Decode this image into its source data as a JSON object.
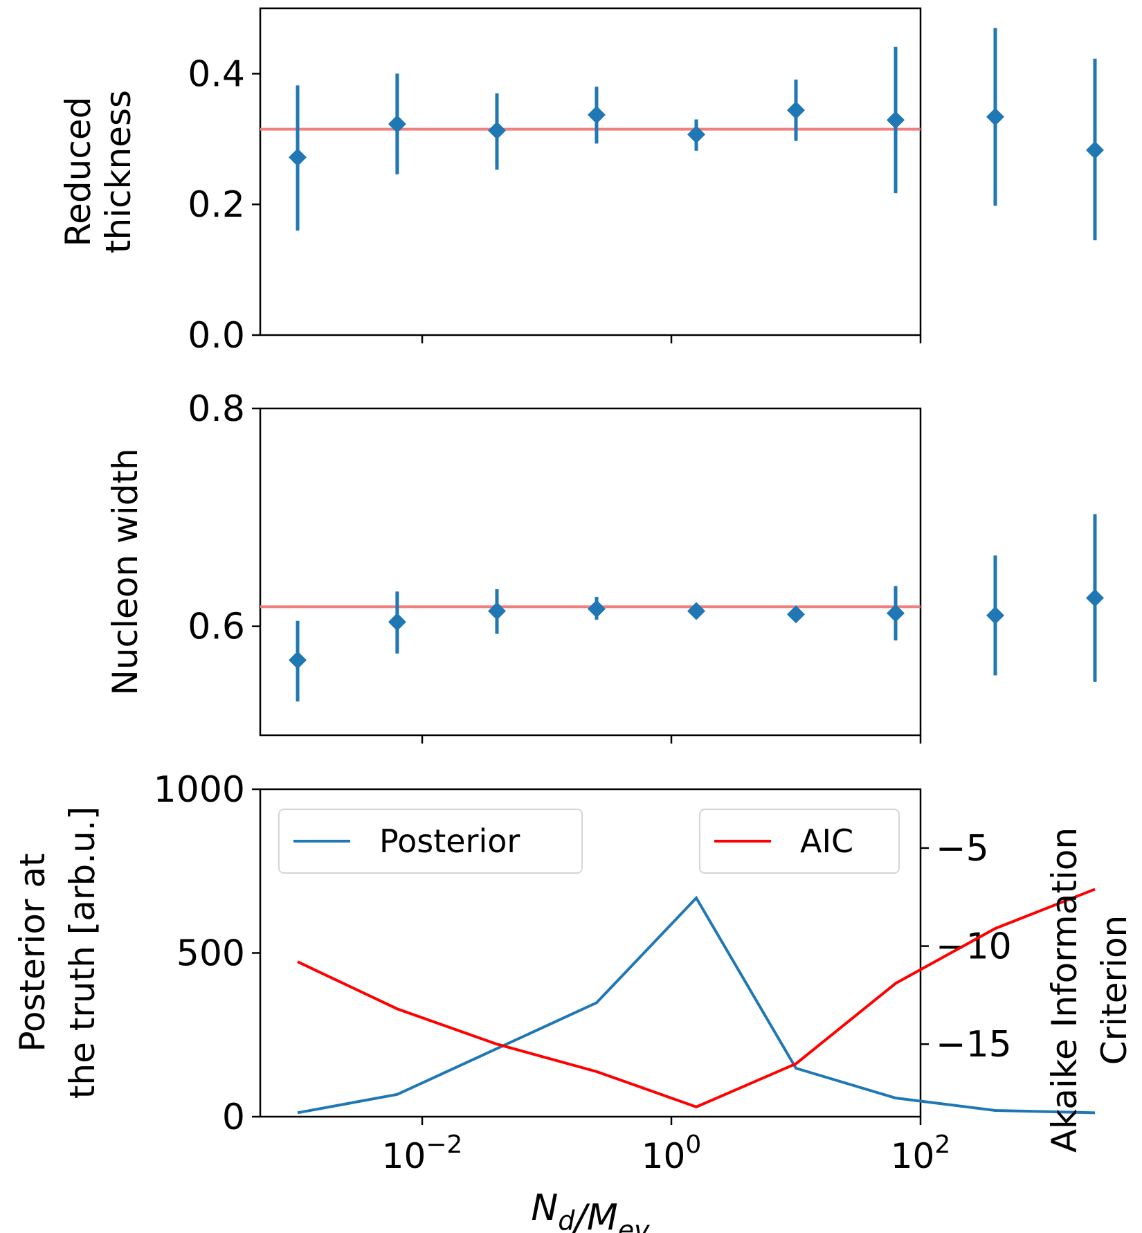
{
  "chart_data": [
    {
      "type": "scatter",
      "title": "",
      "ylabel": [
        "Reduced",
        "thickness"
      ],
      "xscale": "log",
      "xlim_log10": [
        -3.3,
        2.0
      ],
      "ylim": [
        0.0,
        0.5
      ],
      "yticks": [
        0.0,
        0.2,
        0.4
      ],
      "ytick_labels": [
        "0.0",
        "0.2",
        "0.4"
      ],
      "truth": 0.315,
      "points": [
        {
          "x": 0.001,
          "y": 0.272,
          "err_low": 0.112,
          "err_high": 0.11
        },
        {
          "x": 0.0063,
          "y": 0.323,
          "err_low": 0.077,
          "err_high": 0.077
        },
        {
          "x": 0.0398,
          "y": 0.313,
          "err_low": 0.06,
          "err_high": 0.057
        },
        {
          "x": 0.251,
          "y": 0.337,
          "err_low": 0.044,
          "err_high": 0.043
        },
        {
          "x": 1.585,
          "y": 0.307,
          "err_low": 0.025,
          "err_high": 0.023
        },
        {
          "x": 10.0,
          "y": 0.344,
          "err_low": 0.047,
          "err_high": 0.047
        },
        {
          "x": 63.1,
          "y": 0.329,
          "err_low": 0.112,
          "err_high": 0.112
        },
        {
          "x": 398.1,
          "y": 0.334,
          "err_low": 0.136,
          "err_high": 0.136
        },
        {
          "x": 2512.0,
          "y": 0.283,
          "err_low": 0.138,
          "err_high": 0.14
        }
      ]
    },
    {
      "type": "scatter",
      "title": "",
      "ylabel": [
        "Nucleon width"
      ],
      "xscale": "log",
      "xlim_log10": [
        -3.3,
        2.0
      ],
      "ylim": [
        0.5,
        0.8
      ],
      "yticks": [
        0.6,
        0.8
      ],
      "ytick_labels": [
        "0.6",
        "0.8"
      ],
      "truth": 0.618,
      "points": [
        {
          "x": 0.001,
          "y": 0.569,
          "err_low": 0.038,
          "err_high": 0.036
        },
        {
          "x": 0.0063,
          "y": 0.604,
          "err_low": 0.029,
          "err_high": 0.028
        },
        {
          "x": 0.0398,
          "y": 0.614,
          "err_low": 0.021,
          "err_high": 0.02
        },
        {
          "x": 0.251,
          "y": 0.616,
          "err_low": 0.01,
          "err_high": 0.011
        },
        {
          "x": 1.585,
          "y": 0.614,
          "err_low": 0.002,
          "err_high": 0.002
        },
        {
          "x": 10.0,
          "y": 0.611,
          "err_low": 0.002,
          "err_high": 0.002
        },
        {
          "x": 63.1,
          "y": 0.612,
          "err_low": 0.025,
          "err_high": 0.025
        },
        {
          "x": 398.1,
          "y": 0.61,
          "err_low": 0.055,
          "err_high": 0.055
        },
        {
          "x": 2512.0,
          "y": 0.626,
          "err_low": 0.077,
          "err_high": 0.077
        }
      ]
    },
    {
      "type": "line",
      "title": "",
      "xscale": "log",
      "xlim_log10": [
        -3.3,
        2.0
      ],
      "xticks_log10": [
        -2,
        0,
        2
      ],
      "xlabel": "N_d/M_ev",
      "ylabel_left": [
        "Posterior at",
        "the truth [arb.u.]"
      ],
      "ylabel_right": [
        "Akaike Information",
        "Criterion"
      ],
      "ylim_left": [
        0,
        1000
      ],
      "yticks_left": [
        0,
        500,
        1000
      ],
      "ytick_labels_left": [
        "0",
        "500",
        "1000"
      ],
      "ylim_right": [
        -18.7,
        -2.0
      ],
      "yticks_right": [
        -15,
        -10,
        -5
      ],
      "ytick_labels_right": [
        "−15",
        "−10",
        "−5"
      ],
      "x": [
        0.001,
        0.0063,
        0.0398,
        0.251,
        1.585,
        10.0,
        63.1,
        398.1,
        2512.0
      ],
      "series": [
        {
          "name": "Posterior",
          "axis": "left",
          "color": "#1f77b4",
          "values": [
            12,
            68,
            208,
            348,
            668,
            148,
            57,
            19,
            12
          ]
        },
        {
          "name": "AIC",
          "axis": "right",
          "color": "#ff0000",
          "values": [
            -10.8,
            -13.2,
            -15.0,
            -16.4,
            -18.2,
            -16.0,
            -11.9,
            -9.1,
            -7.1
          ]
        }
      ],
      "legend": [
        {
          "label": "Posterior",
          "placement": "upper-left"
        },
        {
          "label": "AIC",
          "placement": "upper-right"
        }
      ]
    }
  ]
}
